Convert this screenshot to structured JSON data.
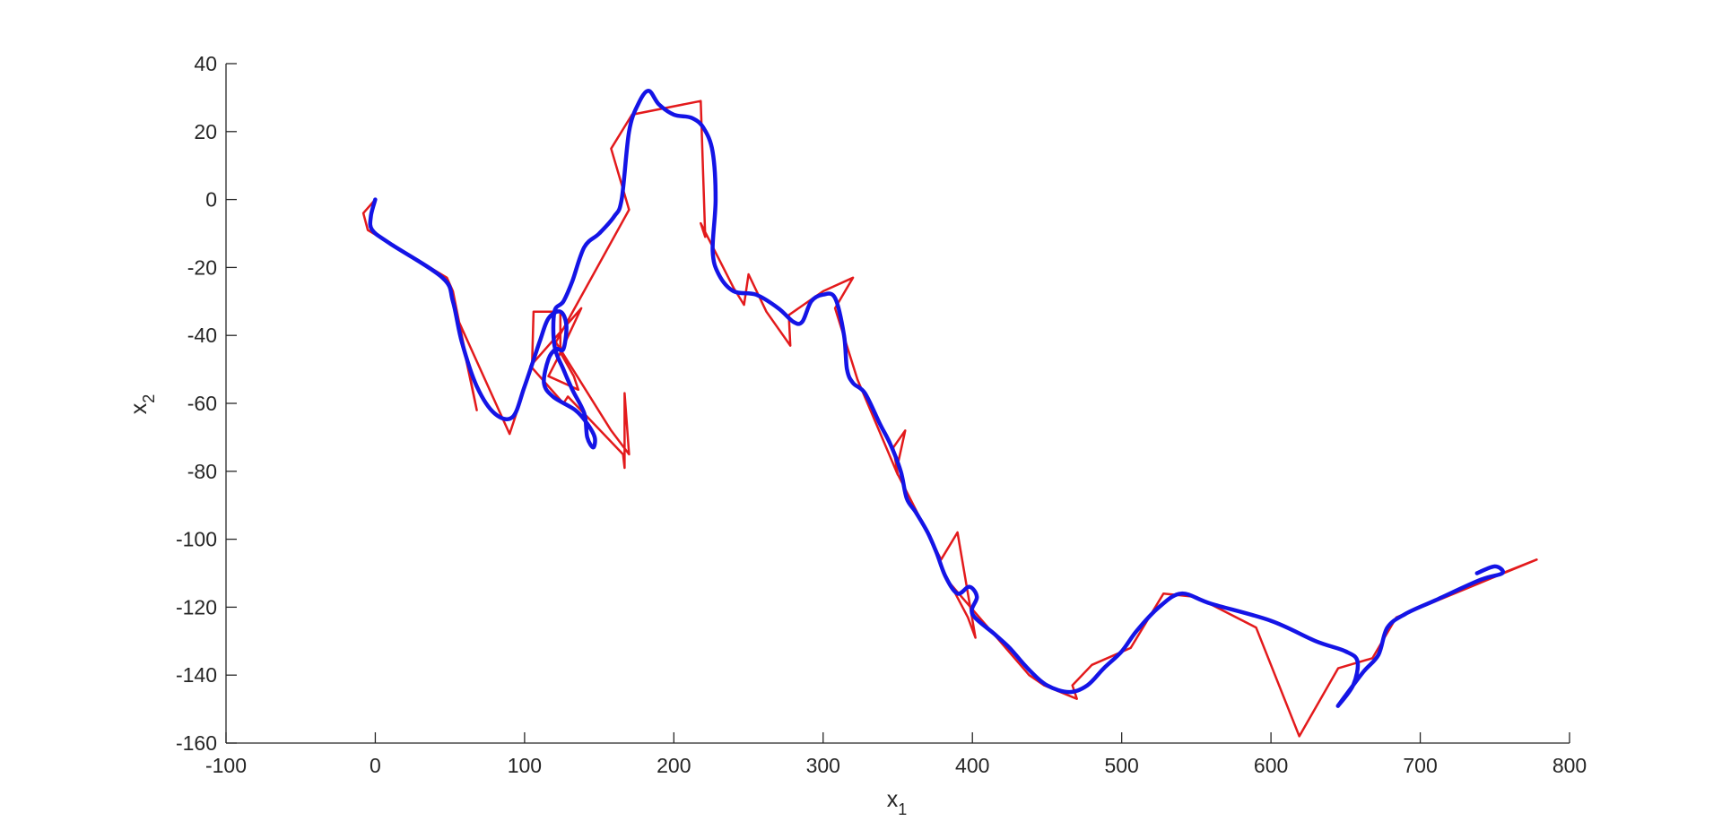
{
  "chart_data": {
    "type": "line",
    "title": "",
    "xlabel": "x",
    "xlabel_sub": "1",
    "ylabel": "x",
    "ylabel_sub": "2",
    "xlim": [
      -100,
      800
    ],
    "ylim": [
      -160,
      40
    ],
    "xticks": [
      -100,
      0,
      100,
      200,
      300,
      400,
      500,
      600,
      700,
      800
    ],
    "yticks": [
      -160,
      -140,
      -120,
      -100,
      -80,
      -60,
      -40,
      -20,
      0,
      20,
      40
    ],
    "grid": false,
    "legend": "none",
    "series": [
      {
        "color": "#e31a1c",
        "style": "piecewise-linear",
        "points": [
          [
            0,
            0
          ],
          [
            -8,
            -4
          ],
          [
            -5,
            -9
          ],
          [
            48,
            -23
          ],
          [
            52,
            -27
          ],
          [
            68,
            -62
          ],
          [
            55,
            -35
          ],
          [
            90,
            -69
          ],
          [
            105,
            -49
          ],
          [
            106,
            -33
          ],
          [
            124,
            -33
          ],
          [
            124,
            -45
          ],
          [
            133,
            -52
          ],
          [
            136,
            -56
          ],
          [
            116,
            -52
          ],
          [
            123,
            -46
          ],
          [
            138,
            -32
          ],
          [
            104,
            -49
          ],
          [
            126,
            -60
          ],
          [
            129,
            -58
          ],
          [
            166,
            -75
          ],
          [
            167,
            -79
          ],
          [
            167,
            -57
          ],
          [
            170,
            -75
          ],
          [
            158,
            -68
          ],
          [
            121,
            -42
          ],
          [
            170,
            -3
          ],
          [
            158,
            15
          ],
          [
            172,
            25
          ],
          [
            218,
            29
          ],
          [
            221,
            -11
          ],
          [
            218,
            -7
          ],
          [
            240,
            -26
          ],
          [
            247,
            -31
          ],
          [
            250,
            -22
          ],
          [
            262,
            -33
          ],
          [
            278,
            -43
          ],
          [
            277,
            -34
          ],
          [
            300,
            -27
          ],
          [
            320,
            -23
          ],
          [
            308,
            -32
          ],
          [
            323,
            -53
          ],
          [
            350,
            -81
          ],
          [
            347,
            -73
          ],
          [
            355,
            -68
          ],
          [
            349,
            -80
          ],
          [
            379,
            -106
          ],
          [
            390,
            -98
          ],
          [
            402,
            -129
          ],
          [
            397,
            -123
          ],
          [
            385,
            -113
          ],
          [
            438,
            -140
          ],
          [
            448,
            -143
          ],
          [
            470,
            -147
          ],
          [
            467,
            -143
          ],
          [
            480,
            -137
          ],
          [
            506,
            -132
          ],
          [
            528,
            -116
          ],
          [
            550,
            -117
          ],
          [
            590,
            -126
          ],
          [
            619,
            -158
          ],
          [
            645,
            -138
          ],
          [
            668,
            -135
          ],
          [
            684,
            -123
          ],
          [
            778,
            -106
          ],
          [
            755,
            -110
          ]
        ]
      },
      {
        "color": "#1414e6",
        "style": "smooth",
        "points": [
          [
            0,
            0
          ],
          [
            -3,
            -5
          ],
          [
            -2,
            -9
          ],
          [
            10,
            -13
          ],
          [
            45,
            -23
          ],
          [
            52,
            -30
          ],
          [
            58,
            -42
          ],
          [
            68,
            -55
          ],
          [
            80,
            -63
          ],
          [
            92,
            -64
          ],
          [
            100,
            -55
          ],
          [
            110,
            -42
          ],
          [
            116,
            -35
          ],
          [
            124,
            -33
          ],
          [
            128,
            -37
          ],
          [
            126,
            -44
          ],
          [
            121,
            -44
          ],
          [
            116,
            -47
          ],
          [
            113,
            -54
          ],
          [
            119,
            -58
          ],
          [
            134,
            -62
          ],
          [
            142,
            -66
          ],
          [
            147,
            -70
          ],
          [
            146,
            -73
          ],
          [
            142,
            -70
          ],
          [
            140,
            -63
          ],
          [
            132,
            -56
          ],
          [
            126,
            -50
          ],
          [
            120,
            -43
          ],
          [
            120,
            -33
          ],
          [
            126,
            -30
          ],
          [
            132,
            -24
          ],
          [
            140,
            -14
          ],
          [
            150,
            -10
          ],
          [
            160,
            -5
          ],
          [
            165,
            0
          ],
          [
            170,
            20
          ],
          [
            176,
            28
          ],
          [
            183,
            32
          ],
          [
            190,
            28
          ],
          [
            200,
            25
          ],
          [
            212,
            24
          ],
          [
            220,
            21
          ],
          [
            226,
            14
          ],
          [
            228,
            0
          ],
          [
            226,
            -15
          ],
          [
            230,
            -22
          ],
          [
            240,
            -27
          ],
          [
            255,
            -28
          ],
          [
            270,
            -32
          ],
          [
            280,
            -36
          ],
          [
            286,
            -36
          ],
          [
            292,
            -30
          ],
          [
            300,
            -28
          ],
          [
            308,
            -29
          ],
          [
            314,
            -40
          ],
          [
            316,
            -50
          ],
          [
            320,
            -54
          ],
          [
            328,
            -57
          ],
          [
            338,
            -66
          ],
          [
            345,
            -72
          ],
          [
            352,
            -80
          ],
          [
            356,
            -88
          ],
          [
            362,
            -92
          ],
          [
            370,
            -98
          ],
          [
            376,
            -104
          ],
          [
            382,
            -111
          ],
          [
            390,
            -116
          ],
          [
            398,
            -114
          ],
          [
            403,
            -117
          ],
          [
            400,
            -122
          ],
          [
            415,
            -128
          ],
          [
            425,
            -132
          ],
          [
            437,
            -138
          ],
          [
            450,
            -143
          ],
          [
            465,
            -145
          ],
          [
            477,
            -143
          ],
          [
            488,
            -138
          ],
          [
            500,
            -133
          ],
          [
            510,
            -127
          ],
          [
            525,
            -120
          ],
          [
            540,
            -116
          ],
          [
            560,
            -119
          ],
          [
            600,
            -124
          ],
          [
            630,
            -130
          ],
          [
            650,
            -133
          ],
          [
            658,
            -136
          ],
          [
            655,
            -143
          ],
          [
            645,
            -149
          ],
          [
            650,
            -146
          ],
          [
            662,
            -139
          ],
          [
            672,
            -134
          ],
          [
            678,
            -126
          ],
          [
            690,
            -122
          ],
          [
            710,
            -118
          ],
          [
            740,
            -112
          ],
          [
            755,
            -110
          ],
          [
            750,
            -108
          ],
          [
            738,
            -110
          ]
        ]
      }
    ]
  }
}
